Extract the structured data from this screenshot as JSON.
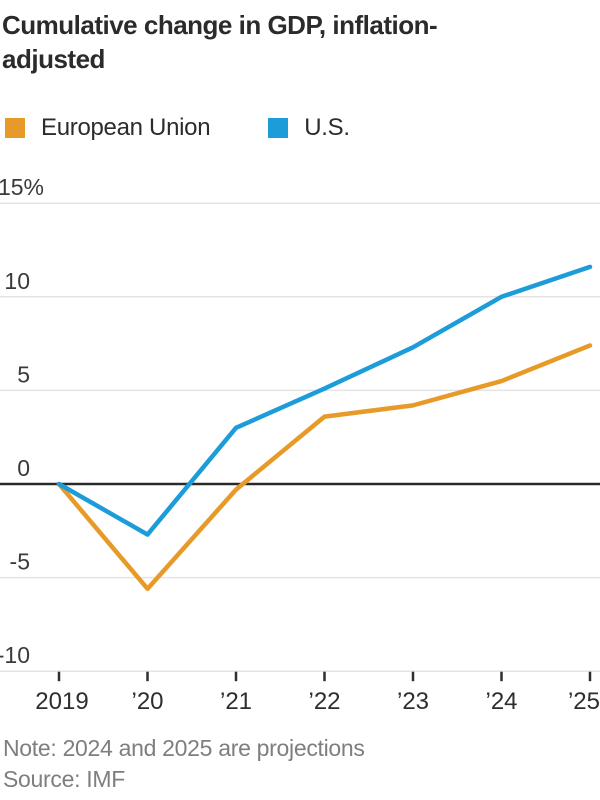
{
  "title_lines": [
    "Cumulative change in GDP, inflation-",
    "adjusted"
  ],
  "legend": {
    "items": [
      {
        "label": "European Union",
        "color": "#E79A28"
      },
      {
        "label": "U.S.",
        "color": "#1C9CD8"
      }
    ]
  },
  "chart_data": {
    "type": "line",
    "title": "Cumulative change in GDP, inflation-adjusted",
    "categories": [
      "2019",
      "’20",
      "’21",
      "’22",
      "’23",
      "’24",
      "’25"
    ],
    "series": [
      {
        "name": "European Union",
        "color": "#E79A28",
        "values": [
          0,
          -5.6,
          -0.3,
          3.6,
          4.2,
          5.5,
          7.4
        ]
      },
      {
        "name": "U.S.",
        "color": "#1C9CD8",
        "values": [
          0,
          -2.7,
          3.0,
          5.1,
          7.3,
          10.0,
          11.6
        ]
      }
    ],
    "ylim": [
      -10,
      15
    ],
    "yticks": [
      15,
      10,
      5,
      0,
      -5,
      -10
    ],
    "ytick_labels": [
      "15%",
      "10",
      "5",
      "0",
      "-5",
      "-10"
    ],
    "grid": true,
    "legend_position": "top",
    "zero_baseline": true,
    "colors": {
      "gridline": "#e4e4e4",
      "zero_line": "#2a2a2a",
      "tick": "#2e2e2e",
      "axis_text": "#3a3a3a"
    }
  },
  "note": "Note: 2024 and 2025 are projections",
  "source": "Source: IMF"
}
